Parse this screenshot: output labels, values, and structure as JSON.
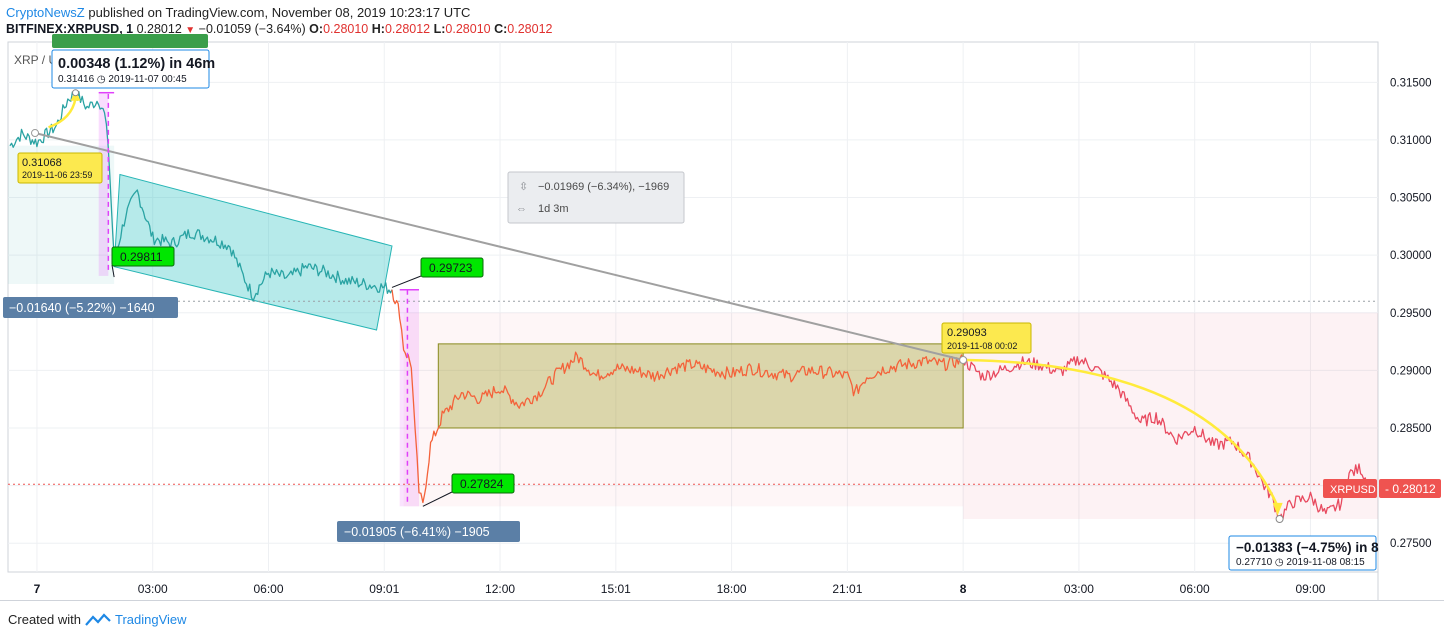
{
  "header": {
    "author": "CryptoNewsZ",
    "published": "published on TradingView.com, November 08, 2019 10:23:17 UTC",
    "symbol": "BITFINEX:XRPUSD, 1",
    "last": "0.28012",
    "change": "−0.01059 (−3.64%)",
    "o_label": "O:",
    "o": "0.28010",
    "h_label": "H:",
    "h": "0.28012",
    "l_label": "L:",
    "l": "0.28010",
    "c_label": "C:",
    "c": "0.28012"
  },
  "footer": {
    "created": "Created with",
    "brand": "TradingView"
  },
  "colors": {
    "teal": "#2aa3a3",
    "orange": "#f4623a",
    "red": "#e84a5f",
    "green_label": "#00e600",
    "yellow_label": "#fce94f",
    "blue_box": "#5b7fa6",
    "price_tag": "#ef5350",
    "magenta": "#e040fb"
  },
  "chart_data": {
    "type": "line",
    "symbol_label": "XRP / U...",
    "ylim": [
      0.2725,
      0.3185
    ],
    "y_ticks": [
      "0.31500",
      "0.31000",
      "0.30500",
      "0.30000",
      "0.29500",
      "0.29000",
      "0.28500",
      "0.28000",
      "0.27500"
    ],
    "y_tick_values": [
      0.315,
      0.31,
      0.305,
      0.3,
      0.295,
      0.29,
      0.285,
      0.28,
      0.275
    ],
    "x_ticks": [
      "7",
      "03:00",
      "06:00",
      "09:01",
      "12:00",
      "15:01",
      "18:00",
      "21:01",
      "8",
      "03:00",
      "06:00",
      "09:00"
    ],
    "x_tick_hours": [
      0,
      3,
      6,
      9,
      12,
      15,
      18,
      21,
      24,
      27,
      30,
      33
    ],
    "x_range_hours": [
      -0.75,
      34.75
    ],
    "series": [
      {
        "segment": "teal",
        "points": [
          [
            -0.7,
            0.3095
          ],
          [
            -0.4,
            0.3105
          ],
          [
            0,
            0.3098
          ],
          [
            0.5,
            0.3112
          ],
          [
            0.8,
            0.3135
          ],
          [
            1.0,
            0.3141
          ],
          [
            1.3,
            0.3128
          ],
          [
            1.6,
            0.3135
          ],
          [
            1.75,
            0.3122
          ],
          [
            1.85,
            0.3095
          ],
          [
            2.0,
            0.2995
          ],
          [
            2.3,
            0.3035
          ],
          [
            2.6,
            0.3055
          ],
          [
            3.0,
            0.3015
          ],
          [
            3.5,
            0.301
          ],
          [
            4.0,
            0.302
          ],
          [
            4.5,
            0.3015
          ],
          [
            5.0,
            0.3008
          ],
          [
            5.3,
            0.2985
          ],
          [
            5.6,
            0.2965
          ],
          [
            6.0,
            0.2985
          ],
          [
            6.5,
            0.298
          ],
          [
            7.0,
            0.299
          ],
          [
            7.5,
            0.2985
          ],
          [
            8.0,
            0.2978
          ],
          [
            8.5,
            0.2975
          ],
          [
            9.0,
            0.2972
          ],
          [
            9.2,
            0.297
          ]
        ]
      },
      {
        "segment": "orange",
        "points": [
          [
            9.2,
            0.297
          ],
          [
            9.4,
            0.295
          ],
          [
            9.5,
            0.292
          ],
          [
            9.7,
            0.2905
          ],
          [
            9.8,
            0.2845
          ],
          [
            9.9,
            0.2795
          ],
          [
            10.0,
            0.2782
          ],
          [
            10.2,
            0.2835
          ],
          [
            10.5,
            0.286
          ],
          [
            11.0,
            0.288
          ],
          [
            11.5,
            0.2875
          ],
          [
            12.0,
            0.2885
          ],
          [
            12.5,
            0.287
          ],
          [
            13.0,
            0.288
          ],
          [
            13.5,
            0.2898
          ],
          [
            14.0,
            0.2912
          ],
          [
            14.5,
            0.2895
          ],
          [
            15.0,
            0.2902
          ],
          [
            15.5,
            0.29
          ],
          [
            16.0,
            0.2895
          ],
          [
            16.5,
            0.2902
          ],
          [
            17.0,
            0.2905
          ],
          [
            17.5,
            0.29
          ],
          [
            18.0,
            0.2897
          ],
          [
            18.5,
            0.2902
          ],
          [
            19.0,
            0.2898
          ],
          [
            19.5,
            0.2895
          ],
          [
            20.0,
            0.29
          ],
          [
            20.5,
            0.2898
          ],
          [
            21.0,
            0.2895
          ],
          [
            21.2,
            0.288
          ],
          [
            21.5,
            0.2895
          ],
          [
            22.0,
            0.2902
          ],
          [
            22.5,
            0.2905
          ],
          [
            23.0,
            0.2908
          ],
          [
            23.5,
            0.2905
          ],
          [
            24.0,
            0.2909
          ]
        ]
      },
      {
        "segment": "red",
        "points": [
          [
            24.0,
            0.2909
          ],
          [
            24.5,
            0.2895
          ],
          [
            25.0,
            0.29
          ],
          [
            25.5,
            0.2907
          ],
          [
            26.0,
            0.2905
          ],
          [
            26.5,
            0.2898
          ],
          [
            27.0,
            0.291
          ],
          [
            27.5,
            0.29
          ],
          [
            28.0,
            0.2885
          ],
          [
            28.3,
            0.287
          ],
          [
            28.6,
            0.2855
          ],
          [
            29.0,
            0.286
          ],
          [
            29.5,
            0.284
          ],
          [
            30.0,
            0.285
          ],
          [
            30.5,
            0.2835
          ],
          [
            31.0,
            0.2838
          ],
          [
            31.5,
            0.282
          ],
          [
            31.8,
            0.28
          ],
          [
            32.0,
            0.279
          ],
          [
            32.2,
            0.2771
          ],
          [
            32.5,
            0.2785
          ],
          [
            33.0,
            0.279
          ],
          [
            33.4,
            0.2775
          ],
          [
            33.8,
            0.2785
          ],
          [
            34.0,
            0.281
          ],
          [
            34.3,
            0.2815
          ],
          [
            34.5,
            0.2801
          ]
        ]
      }
    ],
    "annotations": {
      "top_box_text": "0.00348 (1.12%) in 46m",
      "top_box_sub": "0.31416 ◷ 2019-11-07  00:45",
      "tag_31068": "0.31068",
      "tag_31068_date": "2019-11-06 23:59",
      "green_29811": "0.29811",
      "green_29723": "0.29723",
      "green_27824": "0.27824",
      "measure1": "−0.01640 (−5.22%) −1640",
      "measure2": "−0.01905 (−6.41%) −1905",
      "tooltip_line1": "−0.01969 (−6.34%), −1969",
      "tooltip_line2": "1d 3m",
      "tag_29093": "0.29093",
      "tag_29093_date": "2019-11-08 00:02",
      "bottom_box_text": "−0.01383 (−4.75%) in 8",
      "bottom_box_sub": "0.27710 ◷ 2019-11-08  08:15",
      "price_symbol": "XRPUSD",
      "price_value": "0.28012"
    }
  }
}
